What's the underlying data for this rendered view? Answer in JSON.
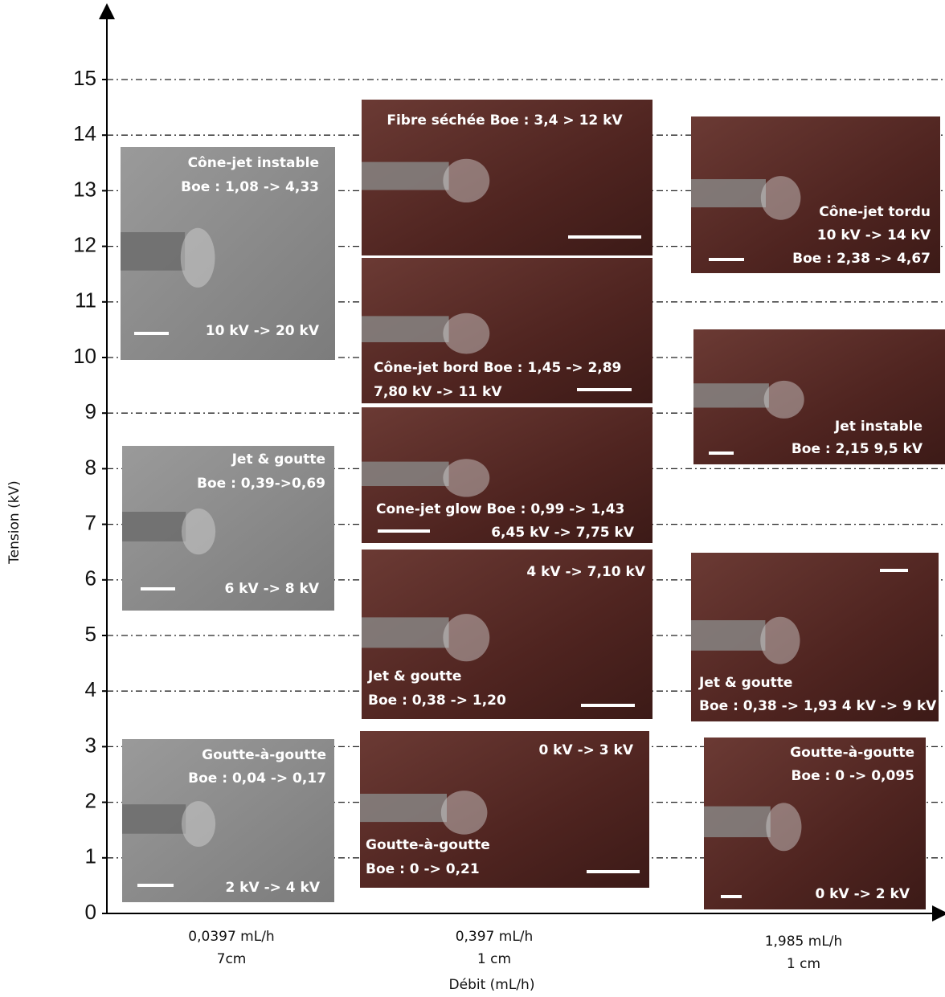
{
  "chart_data": {
    "type": "photo-panels",
    "y_label": "Tension (kV)",
    "x_label": "Débit (mL/h)",
    "ylim": [
      0,
      15
    ],
    "yticks": [
      0,
      1,
      2,
      3,
      4,
      5,
      6,
      7,
      8,
      9,
      10,
      11,
      12,
      13,
      14,
      15
    ],
    "grid": true,
    "categories": [
      [
        "0,0397 mL/h",
        "7cm"
      ],
      [
        "0,397 mL/h",
        "1 cm"
      ],
      [
        "1,985 mL/h",
        "1 cm"
      ]
    ],
    "panels": [
      {
        "lines": [
          "Cône-jet instable",
          "Boe : 1,08 -> 4,33",
          "10 kV -> 20 kV"
        ]
      },
      {
        "lines": [
          "Fibre séchée Boe : 3,4 > 12 kV"
        ]
      },
      {
        "lines": [
          "Cône-jet tordu",
          "10 kV -> 14 kV",
          "Boe : 2,38 -> 4,67"
        ]
      },
      {
        "lines": [
          "Cône-jet bord Boe : 1,45 -> 2,89",
          "7,80 kV -> 11 kV"
        ]
      },
      {
        "lines": [
          "Jet instable",
          "Boe : 2,15 9,5 kV"
        ]
      },
      {
        "lines": [
          "Cone-jet glow Boe : 0,99 -> 1,43",
          "6,45 kV -> 7,75 kV"
        ]
      },
      {
        "lines": [
          "Jet & goutte",
          "Boe : 0,39->0,69",
          "6 kV -> 8 kV"
        ]
      },
      {
        "lines": [
          "4 kV -> 7,10 kV",
          "Jet & goutte",
          "Boe : 0,38 -> 1,20"
        ]
      },
      {
        "lines": [
          "Jet & goutte",
          "Boe : 0,38 -> 1,93 4 kV -> 9 kV"
        ]
      },
      {
        "lines": [
          "Goutte-à-goutte",
          "Boe : 0,04 -> 0,17",
          "2 kV -> 4 kV"
        ]
      },
      {
        "lines": [
          "0 kV -> 3 kV",
          "Goutte-à-goutte",
          "Boe : 0 -> 0,21"
        ]
      },
      {
        "lines": [
          "Goutte-à-goutte",
          "Boe : 0 -> 0,095",
          "0 kV -> 2 kV"
        ]
      }
    ]
  }
}
